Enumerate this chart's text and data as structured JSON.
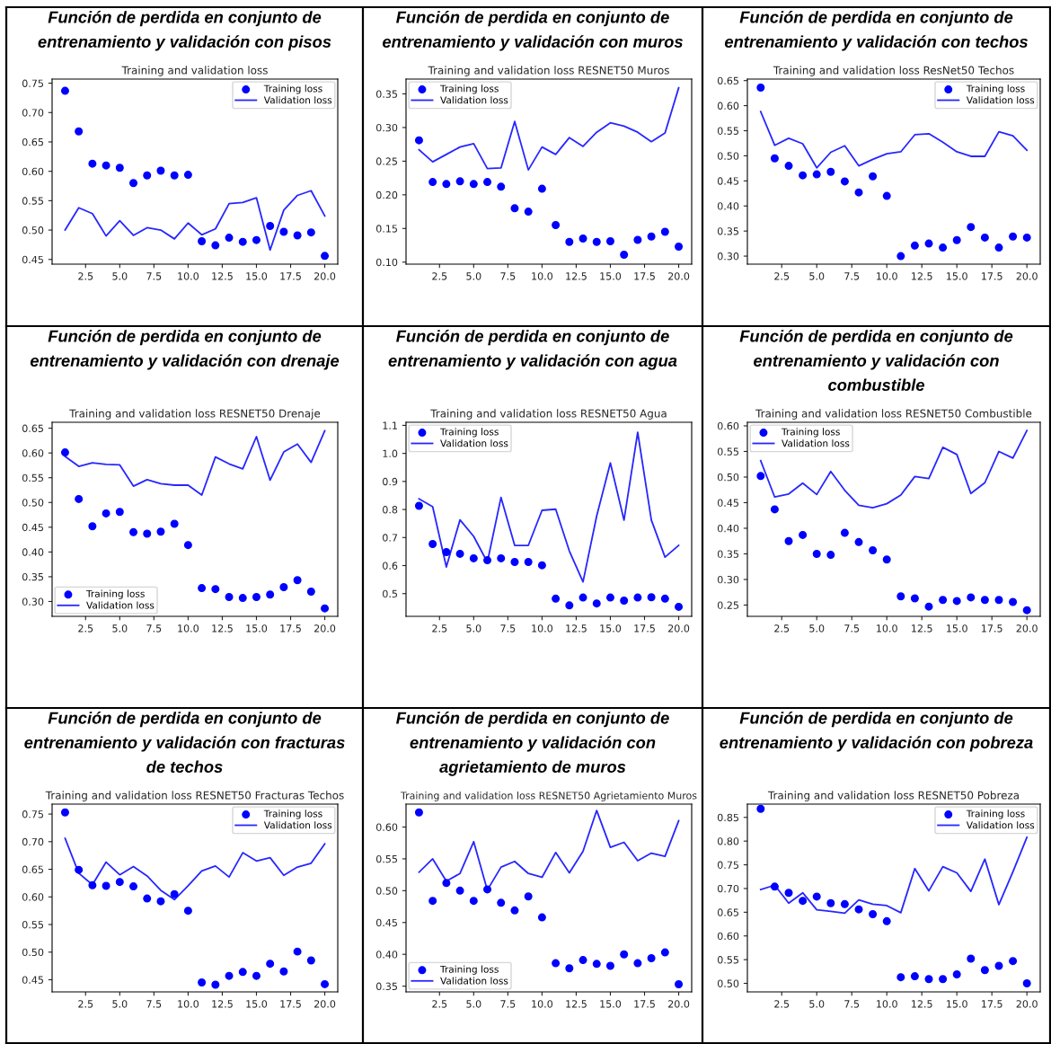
{
  "chart_data": [
    {
      "type": "line",
      "title": "Función de perdida en conjunto de\nentrenamiento y validación con pisos",
      "subtitle": "Training and validation loss",
      "x": [
        1,
        2,
        3,
        4,
        5,
        6,
        7,
        8,
        9,
        10,
        11,
        12,
        13,
        14,
        15,
        16,
        17,
        18,
        19,
        20
      ],
      "xlim": [
        0.05,
        20.95
      ],
      "xticks": [
        2.5,
        {
          "value": 5,
          "label": "5.0"
        },
        7.5,
        {
          "value": 10,
          "label": "10.0"
        },
        12.5,
        {
          "value": 15,
          "label": "15.0"
        },
        17.5,
        {
          "value": 20,
          "label": "20.0"
        }
      ],
      "ylim": [
        0.442,
        0.757
      ],
      "yticks": [
        {
          "value": 0.45,
          "label": "0.45"
        },
        {
          "value": 0.5,
          "label": "0.50"
        },
        {
          "value": 0.55,
          "label": "0.55"
        },
        {
          "value": 0.6,
          "label": "0.60"
        },
        {
          "value": 0.65,
          "label": "0.65"
        },
        {
          "value": 0.7,
          "label": "0.70"
        },
        {
          "value": 0.75,
          "label": "0.75"
        }
      ],
      "legend": "top right",
      "series": [
        {
          "name": "Training loss",
          "type": "scatter",
          "marker": "circle",
          "color": "#0000ff",
          "values": [
            0.737,
            0.668,
            0.613,
            0.61,
            0.606,
            0.58,
            0.593,
            0.601,
            0.593,
            0.594,
            0.481,
            0.474,
            0.487,
            0.48,
            0.483,
            0.507,
            0.497,
            0.491,
            0.496,
            0.456
          ]
        },
        {
          "name": "Validation loss",
          "type": "line",
          "color": "#0000ff",
          "values": [
            0.5,
            0.538,
            0.528,
            0.49,
            0.516,
            0.491,
            0.504,
            0.5,
            0.485,
            0.512,
            0.492,
            0.502,
            0.545,
            0.547,
            0.555,
            0.466,
            0.534,
            0.559,
            0.567,
            0.524
          ]
        }
      ]
    },
    {
      "type": "line",
      "title": "Función de perdida en conjunto de\nentrenamiento y validación con muros",
      "subtitle": "Training and validation loss RESNET50 Muros",
      "x": [
        1,
        2,
        3,
        4,
        5,
        6,
        7,
        8,
        9,
        10,
        11,
        12,
        13,
        14,
        15,
        16,
        17,
        18,
        19,
        20
      ],
      "xlim": [
        0.05,
        20.95
      ],
      "xticks": [
        2.5,
        {
          "value": 5,
          "label": "5.0"
        },
        7.5,
        {
          "value": 10,
          "label": "10.0"
        },
        12.5,
        {
          "value": 15,
          "label": "15.0"
        },
        17.5,
        {
          "value": 20,
          "label": "20.0"
        }
      ],
      "ylim": [
        0.097,
        0.372
      ],
      "yticks": [
        {
          "value": 0.1,
          "label": "0.10"
        },
        {
          "value": 0.15,
          "label": "0.15"
        },
        {
          "value": 0.2,
          "label": "0.20"
        },
        {
          "value": 0.25,
          "label": "0.25"
        },
        {
          "value": 0.3,
          "label": "0.30"
        },
        {
          "value": 0.35,
          "label": "0.35"
        }
      ],
      "legend": "top left",
      "series": [
        {
          "name": "Training loss",
          "type": "scatter",
          "marker": "circle",
          "color": "#0000ff",
          "values": [
            0.281,
            0.219,
            0.216,
            0.22,
            0.216,
            0.219,
            0.212,
            0.18,
            0.175,
            0.209,
            0.155,
            0.13,
            0.135,
            0.13,
            0.131,
            0.111,
            0.133,
            0.138,
            0.145,
            0.123
          ]
        },
        {
          "name": "Validation loss",
          "type": "line",
          "color": "#0000ff",
          "values": [
            0.267,
            0.249,
            0.26,
            0.271,
            0.276,
            0.239,
            0.24,
            0.309,
            0.237,
            0.271,
            0.26,
            0.285,
            0.272,
            0.293,
            0.307,
            0.302,
            0.293,
            0.279,
            0.292,
            0.359
          ]
        }
      ]
    },
    {
      "type": "line",
      "title": "Función de perdida en conjunto de\nentrenamiento y validación con techos",
      "subtitle": "Training and validation loss ResNet50 Techos",
      "x": [
        1,
        2,
        3,
        4,
        5,
        6,
        7,
        8,
        9,
        10,
        11,
        12,
        13,
        14,
        15,
        16,
        17,
        18,
        19,
        20
      ],
      "xlim": [
        0.05,
        20.95
      ],
      "xticks": [
        2.5,
        {
          "value": 5,
          "label": "5.0"
        },
        7.5,
        {
          "value": 10,
          "label": "10.0"
        },
        12.5,
        {
          "value": 15,
          "label": "15.0"
        },
        17.5,
        {
          "value": 20,
          "label": "20.0"
        }
      ],
      "ylim": [
        0.284,
        0.653
      ],
      "yticks": [
        {
          "value": 0.3,
          "label": "0.30"
        },
        {
          "value": 0.35,
          "label": "0.35"
        },
        {
          "value": 0.4,
          "label": "0.40"
        },
        {
          "value": 0.45,
          "label": "0.45"
        },
        {
          "value": 0.5,
          "label": "0.50"
        },
        {
          "value": 0.55,
          "label": "0.55"
        },
        {
          "value": 0.6,
          "label": "0.60"
        },
        {
          "value": 0.65,
          "label": "0.65"
        }
      ],
      "legend": "top right",
      "series": [
        {
          "name": "Training loss",
          "type": "scatter",
          "marker": "circle",
          "color": "#0000ff",
          "values": [
            0.636,
            0.495,
            0.48,
            0.461,
            0.463,
            0.468,
            0.449,
            0.427,
            0.459,
            0.42,
            0.3,
            0.321,
            0.325,
            0.317,
            0.332,
            0.358,
            0.337,
            0.317,
            0.339,
            0.337
          ]
        },
        {
          "name": "Validation loss",
          "type": "line",
          "color": "#0000ff",
          "values": [
            0.588,
            0.521,
            0.535,
            0.524,
            0.476,
            0.507,
            0.52,
            0.48,
            0.493,
            0.504,
            0.508,
            0.542,
            0.544,
            0.527,
            0.508,
            0.499,
            0.499,
            0.548,
            0.54,
            0.511
          ]
        }
      ]
    },
    {
      "type": "line",
      "title": "Función de perdida en conjunto de\nentrenamiento y validación con drenaje",
      "subtitle": "Training and validation loss RESNET50 Drenaje",
      "x": [
        1,
        2,
        3,
        4,
        5,
        6,
        7,
        8,
        9,
        10,
        11,
        12,
        13,
        14,
        15,
        16,
        17,
        18,
        19,
        20
      ],
      "xlim": [
        0.05,
        20.95
      ],
      "xticks": [
        2.5,
        {
          "value": 5,
          "label": "5.0"
        },
        7.5,
        {
          "value": 10,
          "label": "10.0"
        },
        12.5,
        {
          "value": 15,
          "label": "15.0"
        },
        17.5,
        {
          "value": 20,
          "label": "20.0"
        }
      ],
      "ylim": [
        0.27,
        0.662
      ],
      "yticks": [
        {
          "value": 0.3,
          "label": "0.30"
        },
        {
          "value": 0.35,
          "label": "0.35"
        },
        {
          "value": 0.4,
          "label": "0.40"
        },
        {
          "value": 0.45,
          "label": "0.45"
        },
        {
          "value": 0.5,
          "label": "0.50"
        },
        {
          "value": 0.55,
          "label": "0.55"
        },
        {
          "value": 0.6,
          "label": "0.60"
        },
        {
          "value": 0.65,
          "label": "0.65"
        }
      ],
      "legend": "bottom left",
      "series": [
        {
          "name": "Training loss",
          "type": "scatter",
          "marker": "circle",
          "color": "#0000ff",
          "values": [
            0.601,
            0.507,
            0.452,
            0.478,
            0.481,
            0.44,
            0.437,
            0.441,
            0.457,
            0.414,
            0.327,
            0.325,
            0.309,
            0.307,
            0.309,
            0.314,
            0.329,
            0.343,
            0.32,
            0.286
          ]
        },
        {
          "name": "Validation loss",
          "type": "line",
          "color": "#0000ff",
          "values": [
            0.593,
            0.573,
            0.58,
            0.577,
            0.576,
            0.533,
            0.546,
            0.538,
            0.535,
            0.535,
            0.515,
            0.592,
            0.578,
            0.568,
            0.633,
            0.545,
            0.602,
            0.618,
            0.581,
            0.645
          ]
        }
      ]
    },
    {
      "type": "line",
      "title": "Función de perdida en conjunto de\nentrenamiento y validación con agua",
      "subtitle": "Training and validation loss RESNET50 Agua",
      "x": [
        1,
        2,
        3,
        4,
        5,
        6,
        7,
        8,
        9,
        10,
        11,
        12,
        13,
        14,
        15,
        16,
        17,
        18,
        19,
        20
      ],
      "xlim": [
        0.05,
        20.95
      ],
      "xticks": [
        2.5,
        {
          "value": 5,
          "label": "5.0"
        },
        7.5,
        {
          "value": 10,
          "label": "10.0"
        },
        12.5,
        {
          "value": 15,
          "label": "15.0"
        },
        17.5,
        {
          "value": 20,
          "label": "20.0"
        }
      ],
      "ylim": [
        0.419,
        1.111
      ],
      "yticks": [
        0.5,
        0.6,
        0.7,
        0.8,
        0.9,
        {
          "value": 1,
          "label": "1.0"
        },
        1.1
      ],
      "legend": "top left",
      "series": [
        {
          "name": "Training loss",
          "type": "scatter",
          "marker": "circle",
          "color": "#0000ff",
          "values": [
            0.813,
            0.677,
            0.648,
            0.642,
            0.626,
            0.619,
            0.626,
            0.613,
            0.613,
            0.601,
            0.482,
            0.458,
            0.486,
            0.465,
            0.486,
            0.475,
            0.486,
            0.487,
            0.482,
            0.453
          ]
        },
        {
          "name": "Validation loss",
          "type": "line",
          "color": "#0000ff",
          "values": [
            0.838,
            0.81,
            0.595,
            0.763,
            0.704,
            0.612,
            0.843,
            0.672,
            0.672,
            0.797,
            0.801,
            0.652,
            0.542,
            0.777,
            0.966,
            0.762,
            1.075,
            0.762,
            0.63,
            0.672
          ]
        }
      ]
    },
    {
      "type": "line",
      "title": "Función de perdida en conjunto de\nentrenamiento y validación con\ncombustible",
      "subtitle": "Training and validation loss RESNET50 Combustible",
      "x": [
        1,
        2,
        3,
        4,
        5,
        6,
        7,
        8,
        9,
        10,
        11,
        12,
        13,
        14,
        15,
        16,
        17,
        18,
        19,
        20
      ],
      "xlim": [
        0.05,
        20.95
      ],
      "xticks": [
        2.5,
        {
          "value": 5,
          "label": "5.0"
        },
        7.5,
        {
          "value": 10,
          "label": "10.0"
        },
        12.5,
        {
          "value": 15,
          "label": "15.0"
        },
        17.5,
        {
          "value": 20,
          "label": "20.0"
        }
      ],
      "ylim": [
        0.228,
        0.607
      ],
      "yticks": [
        {
          "value": 0.25,
          "label": "0.25"
        },
        {
          "value": 0.3,
          "label": "0.30"
        },
        {
          "value": 0.35,
          "label": "0.35"
        },
        {
          "value": 0.4,
          "label": "0.40"
        },
        {
          "value": 0.45,
          "label": "0.45"
        },
        {
          "value": 0.5,
          "label": "0.50"
        },
        {
          "value": 0.55,
          "label": "0.55"
        },
        {
          "value": 0.6,
          "label": "0.60"
        }
      ],
      "legend": "top left",
      "series": [
        {
          "name": "Training loss",
          "type": "scatter",
          "marker": "circle",
          "color": "#0000ff",
          "values": [
            0.502,
            0.437,
            0.375,
            0.387,
            0.35,
            0.348,
            0.391,
            0.373,
            0.357,
            0.339,
            0.267,
            0.263,
            0.247,
            0.26,
            0.258,
            0.265,
            0.26,
            0.26,
            0.256,
            0.24
          ]
        },
        {
          "name": "Validation loss",
          "type": "line",
          "color": "#0000ff",
          "values": [
            0.532,
            0.461,
            0.467,
            0.488,
            0.466,
            0.511,
            0.474,
            0.445,
            0.44,
            0.448,
            0.465,
            0.501,
            0.497,
            0.558,
            0.544,
            0.468,
            0.489,
            0.55,
            0.537,
            0.591
          ]
        }
      ]
    },
    {
      "type": "line",
      "title": "Función de perdida en conjunto de\nentrenamiento y validación con fracturas\nde techos",
      "subtitle": "Training and validation loss RESNET50 Fracturas Techos",
      "x": [
        1,
        2,
        3,
        4,
        5,
        6,
        7,
        8,
        9,
        10,
        11,
        12,
        13,
        14,
        15,
        16,
        17,
        18,
        19,
        20
      ],
      "xlim": [
        0.05,
        20.95
      ],
      "xticks": [
        2.5,
        {
          "value": 5,
          "label": "5.0"
        },
        7.5,
        {
          "value": 10,
          "label": "10.0"
        },
        12.5,
        {
          "value": 15,
          "label": "15.0"
        },
        17.5,
        {
          "value": 20,
          "label": "20.0"
        }
      ],
      "ylim": [
        0.428,
        0.768
      ],
      "yticks": [
        {
          "value": 0.45,
          "label": "0.45"
        },
        {
          "value": 0.5,
          "label": "0.50"
        },
        {
          "value": 0.55,
          "label": "0.55"
        },
        {
          "value": 0.6,
          "label": "0.60"
        },
        {
          "value": 0.65,
          "label": "0.65"
        },
        {
          "value": 0.7,
          "label": "0.70"
        },
        {
          "value": 0.75,
          "label": "0.75"
        }
      ],
      "legend": "top right",
      "series": [
        {
          "name": "Training loss",
          "type": "scatter",
          "marker": "circle",
          "color": "#0000ff",
          "values": [
            0.753,
            0.649,
            0.621,
            0.62,
            0.627,
            0.619,
            0.597,
            0.592,
            0.605,
            0.575,
            0.445,
            0.441,
            0.457,
            0.464,
            0.457,
            0.479,
            0.465,
            0.501,
            0.485,
            0.442
          ]
        },
        {
          "name": "Validation loss",
          "type": "line",
          "color": "#0000ff",
          "values": [
            0.706,
            0.643,
            0.622,
            0.663,
            0.64,
            0.655,
            0.638,
            0.612,
            0.595,
            0.62,
            0.647,
            0.656,
            0.636,
            0.68,
            0.665,
            0.671,
            0.639,
            0.654,
            0.661,
            0.696
          ]
        }
      ]
    },
    {
      "type": "line",
      "title": "Función de perdida en conjunto de\nentrenamiento y validación con\nagrietamiento de muros",
      "subtitle": "Training and validation loss RESNET50 Agrietamiento Muros",
      "x": [
        1,
        2,
        3,
        4,
        5,
        6,
        7,
        8,
        9,
        10,
        11,
        12,
        13,
        14,
        15,
        16,
        17,
        18,
        19,
        20
      ],
      "xlim": [
        0.05,
        20.95
      ],
      "xticks": [
        2.5,
        {
          "value": 5,
          "label": "5.0"
        },
        7.5,
        {
          "value": 10,
          "label": "10.0"
        },
        12.5,
        {
          "value": 15,
          "label": "15.0"
        },
        17.5,
        {
          "value": 20,
          "label": "20.0"
        }
      ],
      "ylim": [
        0.341,
        0.636
      ],
      "yticks": [
        {
          "value": 0.35,
          "label": "0.35"
        },
        {
          "value": 0.4,
          "label": "0.40"
        },
        {
          "value": 0.45,
          "label": "0.45"
        },
        {
          "value": 0.5,
          "label": "0.50"
        },
        {
          "value": 0.55,
          "label": "0.55"
        },
        {
          "value": 0.6,
          "label": "0.60"
        }
      ],
      "legend": "bottom left",
      "series": [
        {
          "name": "Training loss",
          "type": "scatter",
          "marker": "circle",
          "color": "#0000ff",
          "values": [
            0.623,
            0.484,
            0.512,
            0.5,
            0.484,
            0.502,
            0.481,
            0.469,
            0.491,
            0.458,
            0.386,
            0.378,
            0.391,
            0.385,
            0.382,
            0.4,
            0.386,
            0.394,
            0.403,
            0.353
          ]
        },
        {
          "name": "Validation loss",
          "type": "line",
          "color": "#0000ff",
          "values": [
            0.529,
            0.55,
            0.515,
            0.527,
            0.577,
            0.501,
            0.537,
            0.546,
            0.527,
            0.521,
            0.56,
            0.528,
            0.562,
            0.626,
            0.568,
            0.576,
            0.547,
            0.559,
            0.554,
            0.61
          ]
        }
      ]
    },
    {
      "type": "line",
      "title": "Función de perdida en conjunto de\nentrenamiento y validación con pobreza",
      "subtitle": "Training and validation loss RESNET50 Pobreza",
      "x": [
        1,
        2,
        3,
        4,
        5,
        6,
        7,
        8,
        9,
        10,
        11,
        12,
        13,
        14,
        15,
        16,
        17,
        18,
        19,
        20
      ],
      "xlim": [
        0.05,
        20.95
      ],
      "xticks": [
        2.5,
        {
          "value": 5,
          "label": "5.0"
        },
        7.5,
        {
          "value": 10,
          "label": "10.0"
        },
        12.5,
        {
          "value": 15,
          "label": "15.0"
        },
        17.5,
        {
          "value": 20,
          "label": "20.0"
        }
      ],
      "ylim": [
        0.482,
        0.878
      ],
      "yticks": [
        {
          "value": 0.5,
          "label": "0.50"
        },
        {
          "value": 0.55,
          "label": "0.55"
        },
        {
          "value": 0.6,
          "label": "0.60"
        },
        {
          "value": 0.65,
          "label": "0.65"
        },
        {
          "value": 0.7,
          "label": "0.70"
        },
        {
          "value": 0.75,
          "label": "0.75"
        },
        {
          "value": 0.8,
          "label": "0.80"
        },
        {
          "value": 0.85,
          "label": "0.85"
        }
      ],
      "legend": "top right",
      "series": [
        {
          "name": "Training loss",
          "type": "scatter",
          "marker": "circle",
          "color": "#0000ff",
          "values": [
            0.868,
            0.704,
            0.691,
            0.674,
            0.683,
            0.669,
            0.667,
            0.656,
            0.646,
            0.631,
            0.513,
            0.515,
            0.509,
            0.509,
            0.519,
            0.552,
            0.528,
            0.537,
            0.547,
            0.5
          ]
        },
        {
          "name": "Validation loss",
          "type": "line",
          "color": "#0000ff",
          "values": [
            0.698,
            0.707,
            0.669,
            0.691,
            0.655,
            0.652,
            0.648,
            0.676,
            0.667,
            0.664,
            0.649,
            0.742,
            0.695,
            0.746,
            0.733,
            0.694,
            0.762,
            0.666,
            0.735,
            0.808
          ]
        }
      ]
    }
  ]
}
